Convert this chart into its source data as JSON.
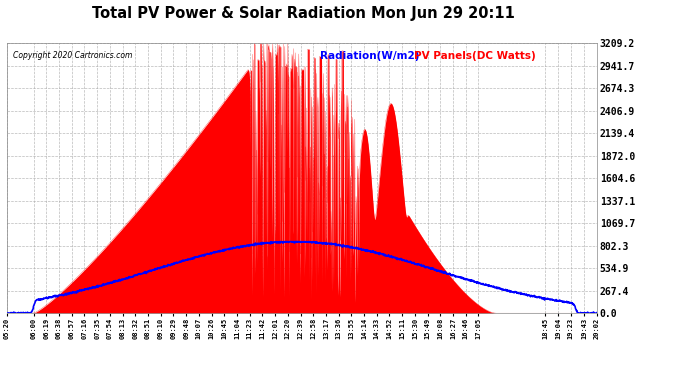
{
  "title": "Total PV Power & Solar Radiation Mon Jun 29 20:11",
  "copyright": "Copyright 2020 Cartronics.com",
  "legend_radiation": "Radiation(W/m2)",
  "legend_pv": "PV Panels(DC Watts)",
  "radiation_color": "blue",
  "pv_color": "red",
  "bg_color": "#ffffff",
  "plot_bg_color": "#ffffff",
  "grid_color": "#aaaaaa",
  "title_color": "#000000",
  "yticks": [
    0.0,
    267.4,
    534.9,
    802.3,
    1069.7,
    1337.1,
    1604.6,
    1872.0,
    2139.4,
    2406.9,
    2674.3,
    2941.7,
    3209.2
  ],
  "xtick_labels": [
    "05:20",
    "06:00",
    "06:19",
    "06:38",
    "06:57",
    "07:16",
    "07:35",
    "07:54",
    "08:13",
    "08:32",
    "08:51",
    "09:10",
    "09:29",
    "09:48",
    "10:07",
    "10:26",
    "10:45",
    "11:04",
    "11:23",
    "11:42",
    "12:01",
    "12:20",
    "12:39",
    "12:58",
    "13:17",
    "13:36",
    "13:55",
    "14:14",
    "14:33",
    "14:52",
    "15:11",
    "15:30",
    "15:49",
    "16:08",
    "16:27",
    "16:46",
    "17:05",
    "18:45",
    "19:04",
    "19:23",
    "19:43",
    "20:02"
  ],
  "ymax": 3209.2,
  "ymin": 0.0
}
